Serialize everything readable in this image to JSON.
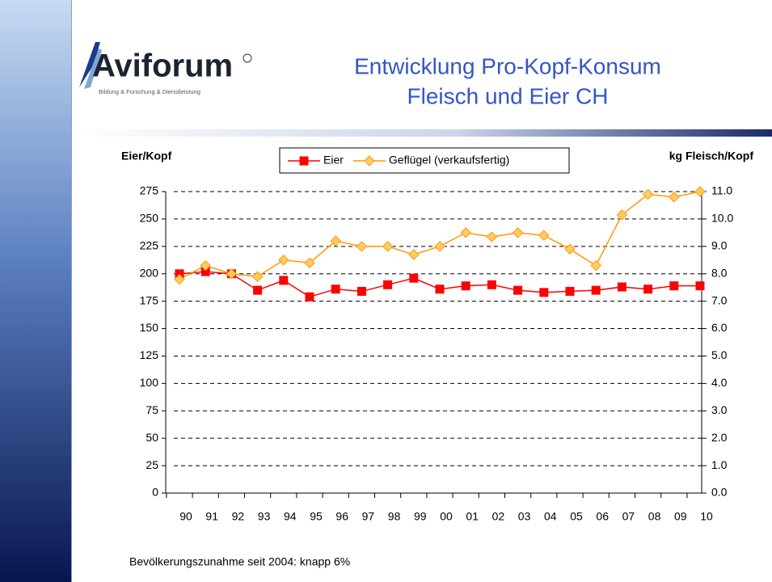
{
  "header": {
    "logo": "Aviforum",
    "tagline": "Bildung & Forschung & Dienstleistung",
    "title": [
      "Entwicklung Pro-Kopf-Konsum",
      "Fleisch und Eier CH"
    ]
  },
  "chart_data": {
    "type": "line",
    "ylabel": "Eier/Kopf",
    "y2label": "kg Fleisch/Kopf",
    "categories": [
      "90",
      "91",
      "92",
      "93",
      "94",
      "95",
      "96",
      "97",
      "98",
      "99",
      "00",
      "01",
      "02",
      "03",
      "04",
      "05",
      "06",
      "07",
      "08",
      "09",
      "10"
    ],
    "series": [
      {
        "name": "Eier",
        "color": "#ff0000",
        "marker": "square",
        "axis": "y",
        "values": [
          200,
          202,
          200,
          185,
          194,
          179,
          186,
          184,
          190,
          196,
          186,
          189,
          190,
          185,
          183,
          184,
          185,
          188,
          186,
          189,
          189
        ]
      },
      {
        "name": "Geflügel (verkaufsfertig)",
        "color": "#ff9900",
        "marker": "diamond",
        "axis": "y2",
        "values": [
          7.8,
          8.3,
          8.0,
          7.9,
          8.5,
          8.4,
          9.2,
          9.0,
          9.0,
          8.7,
          9.0,
          9.5,
          9.35,
          9.5,
          9.4,
          8.9,
          8.3,
          10.15,
          10.9,
          10.8,
          11.0
        ]
      }
    ],
    "ylim": [
      0,
      275
    ],
    "yticks": [
      0,
      25,
      50,
      75,
      100,
      125,
      150,
      175,
      200,
      225,
      250,
      275
    ],
    "y2lim": [
      0,
      11
    ],
    "y2ticks": [
      {
        "value": 0,
        "label": "0.0"
      },
      {
        "value": 1,
        "label": "1.0"
      },
      {
        "value": 2,
        "label": "2.0"
      },
      {
        "value": 3,
        "label": "3.0"
      },
      {
        "value": 4,
        "label": "4.0"
      },
      {
        "value": 5,
        "label": "5.0"
      },
      {
        "value": 6,
        "label": "6.0"
      },
      {
        "value": 7,
        "label": "7.0"
      },
      {
        "value": 8,
        "label": "8.0"
      },
      {
        "value": 9,
        "label": "9.0"
      },
      {
        "value": 10,
        "label": "10.0"
      },
      {
        "value": 11,
        "label": "11.0"
      }
    ],
    "grid": true,
    "legend": "top"
  },
  "footer": {
    "note": "Bevölkerungszunahme seit 2004: knapp 6%"
  }
}
